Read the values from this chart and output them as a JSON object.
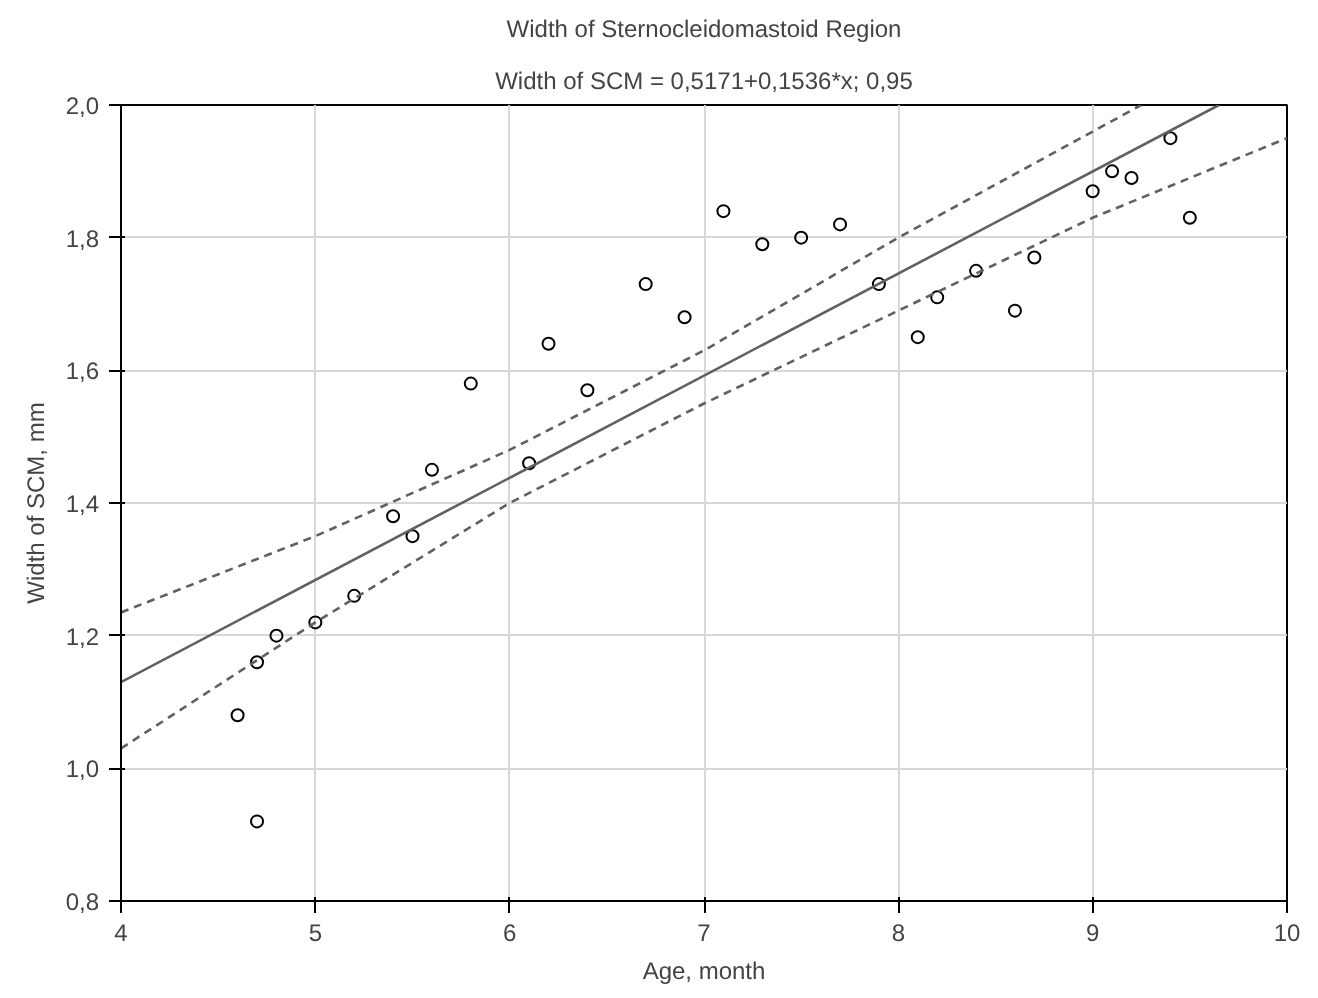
{
  "chart_data": {
    "type": "scatter",
    "title": "Width of Sternocleidomastoid Region",
    "subtitle": "Width of SCM = 0,5171+0,1536*x; 0,95",
    "xlabel": "Age, month",
    "ylabel": "Width of SCM, mm",
    "xlim": [
      4,
      10
    ],
    "ylim": [
      0.8,
      2.0
    ],
    "xticks": [
      4,
      5,
      6,
      7,
      8,
      9,
      10
    ],
    "yticks": [
      {
        "value": 0.8,
        "label": "0,8"
      },
      {
        "value": 1.0,
        "label": "1,0"
      },
      {
        "value": 1.2,
        "label": "1,2"
      },
      {
        "value": 1.4,
        "label": "1,4"
      },
      {
        "value": 1.6,
        "label": "1,6"
      },
      {
        "value": 1.8,
        "label": "1,8"
      },
      {
        "value": 2.0,
        "label": "2,0"
      }
    ],
    "grid": true,
    "series": [
      {
        "marker": "circle",
        "color": "#000000",
        "x": [
          4.6,
          4.7,
          4.7,
          4.8,
          5.0,
          5.2,
          5.4,
          5.5,
          5.6,
          5.8,
          6.1,
          6.2,
          6.4,
          6.7,
          6.9,
          7.1,
          7.3,
          7.5,
          7.7,
          7.9,
          8.1,
          8.2,
          8.4,
          8.6,
          8.7,
          9.0,
          9.1,
          9.2,
          9.4,
          9.5
        ],
        "values": [
          1.08,
          0.92,
          1.16,
          1.2,
          1.22,
          1.26,
          1.38,
          1.35,
          1.45,
          1.58,
          1.46,
          1.64,
          1.57,
          1.73,
          1.68,
          1.84,
          1.79,
          1.8,
          1.82,
          1.73,
          1.65,
          1.71,
          1.75,
          1.69,
          1.77,
          1.87,
          1.9,
          1.89,
          1.95,
          1.83
        ]
      },
      {
        "type": "line",
        "marker": "none",
        "line_style": "solid",
        "color": "#606060",
        "x": [
          4,
          9.65
        ],
        "values": [
          1.13,
          2.0
        ]
      },
      {
        "type": "line",
        "line_style": "dashed",
        "color": "#606060",
        "marker": "none",
        "x": [
          4,
          5,
          6,
          7,
          8,
          9,
          9.25
        ],
        "values": [
          1.235,
          1.35,
          1.48,
          1.63,
          1.8,
          1.96,
          2.0
        ]
      },
      {
        "type": "line",
        "line_style": "dashed",
        "color": "#606060",
        "marker": "none",
        "x": [
          4,
          5,
          6,
          7,
          8,
          9,
          10
        ],
        "values": [
          1.03,
          1.22,
          1.4,
          1.55,
          1.69,
          1.83,
          1.95
        ]
      }
    ]
  }
}
